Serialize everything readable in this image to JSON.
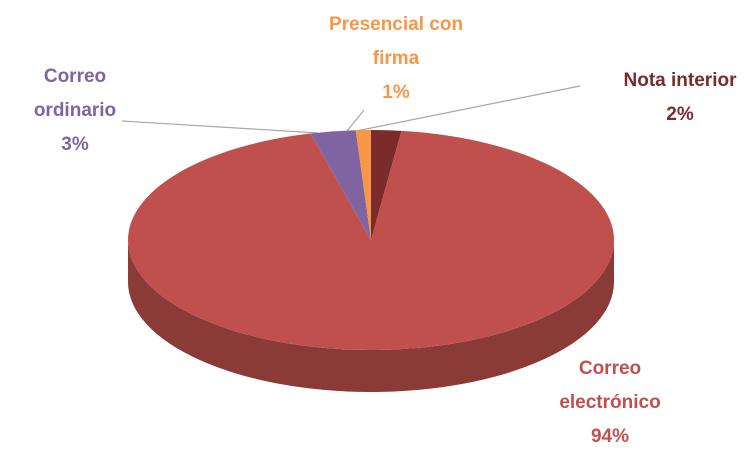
{
  "chart_data": {
    "type": "pie",
    "categories": [
      "Nota interior",
      "Correo electrónico",
      "Correo ordinario",
      "Presencial con firma"
    ],
    "values": [
      2,
      94,
      3,
      1
    ],
    "value_labels": [
      "2%",
      "94%",
      "3%",
      "1%"
    ],
    "colors": [
      "#7b2b29",
      "#c0504d",
      "#8064a2",
      "#f79646"
    ]
  }
}
